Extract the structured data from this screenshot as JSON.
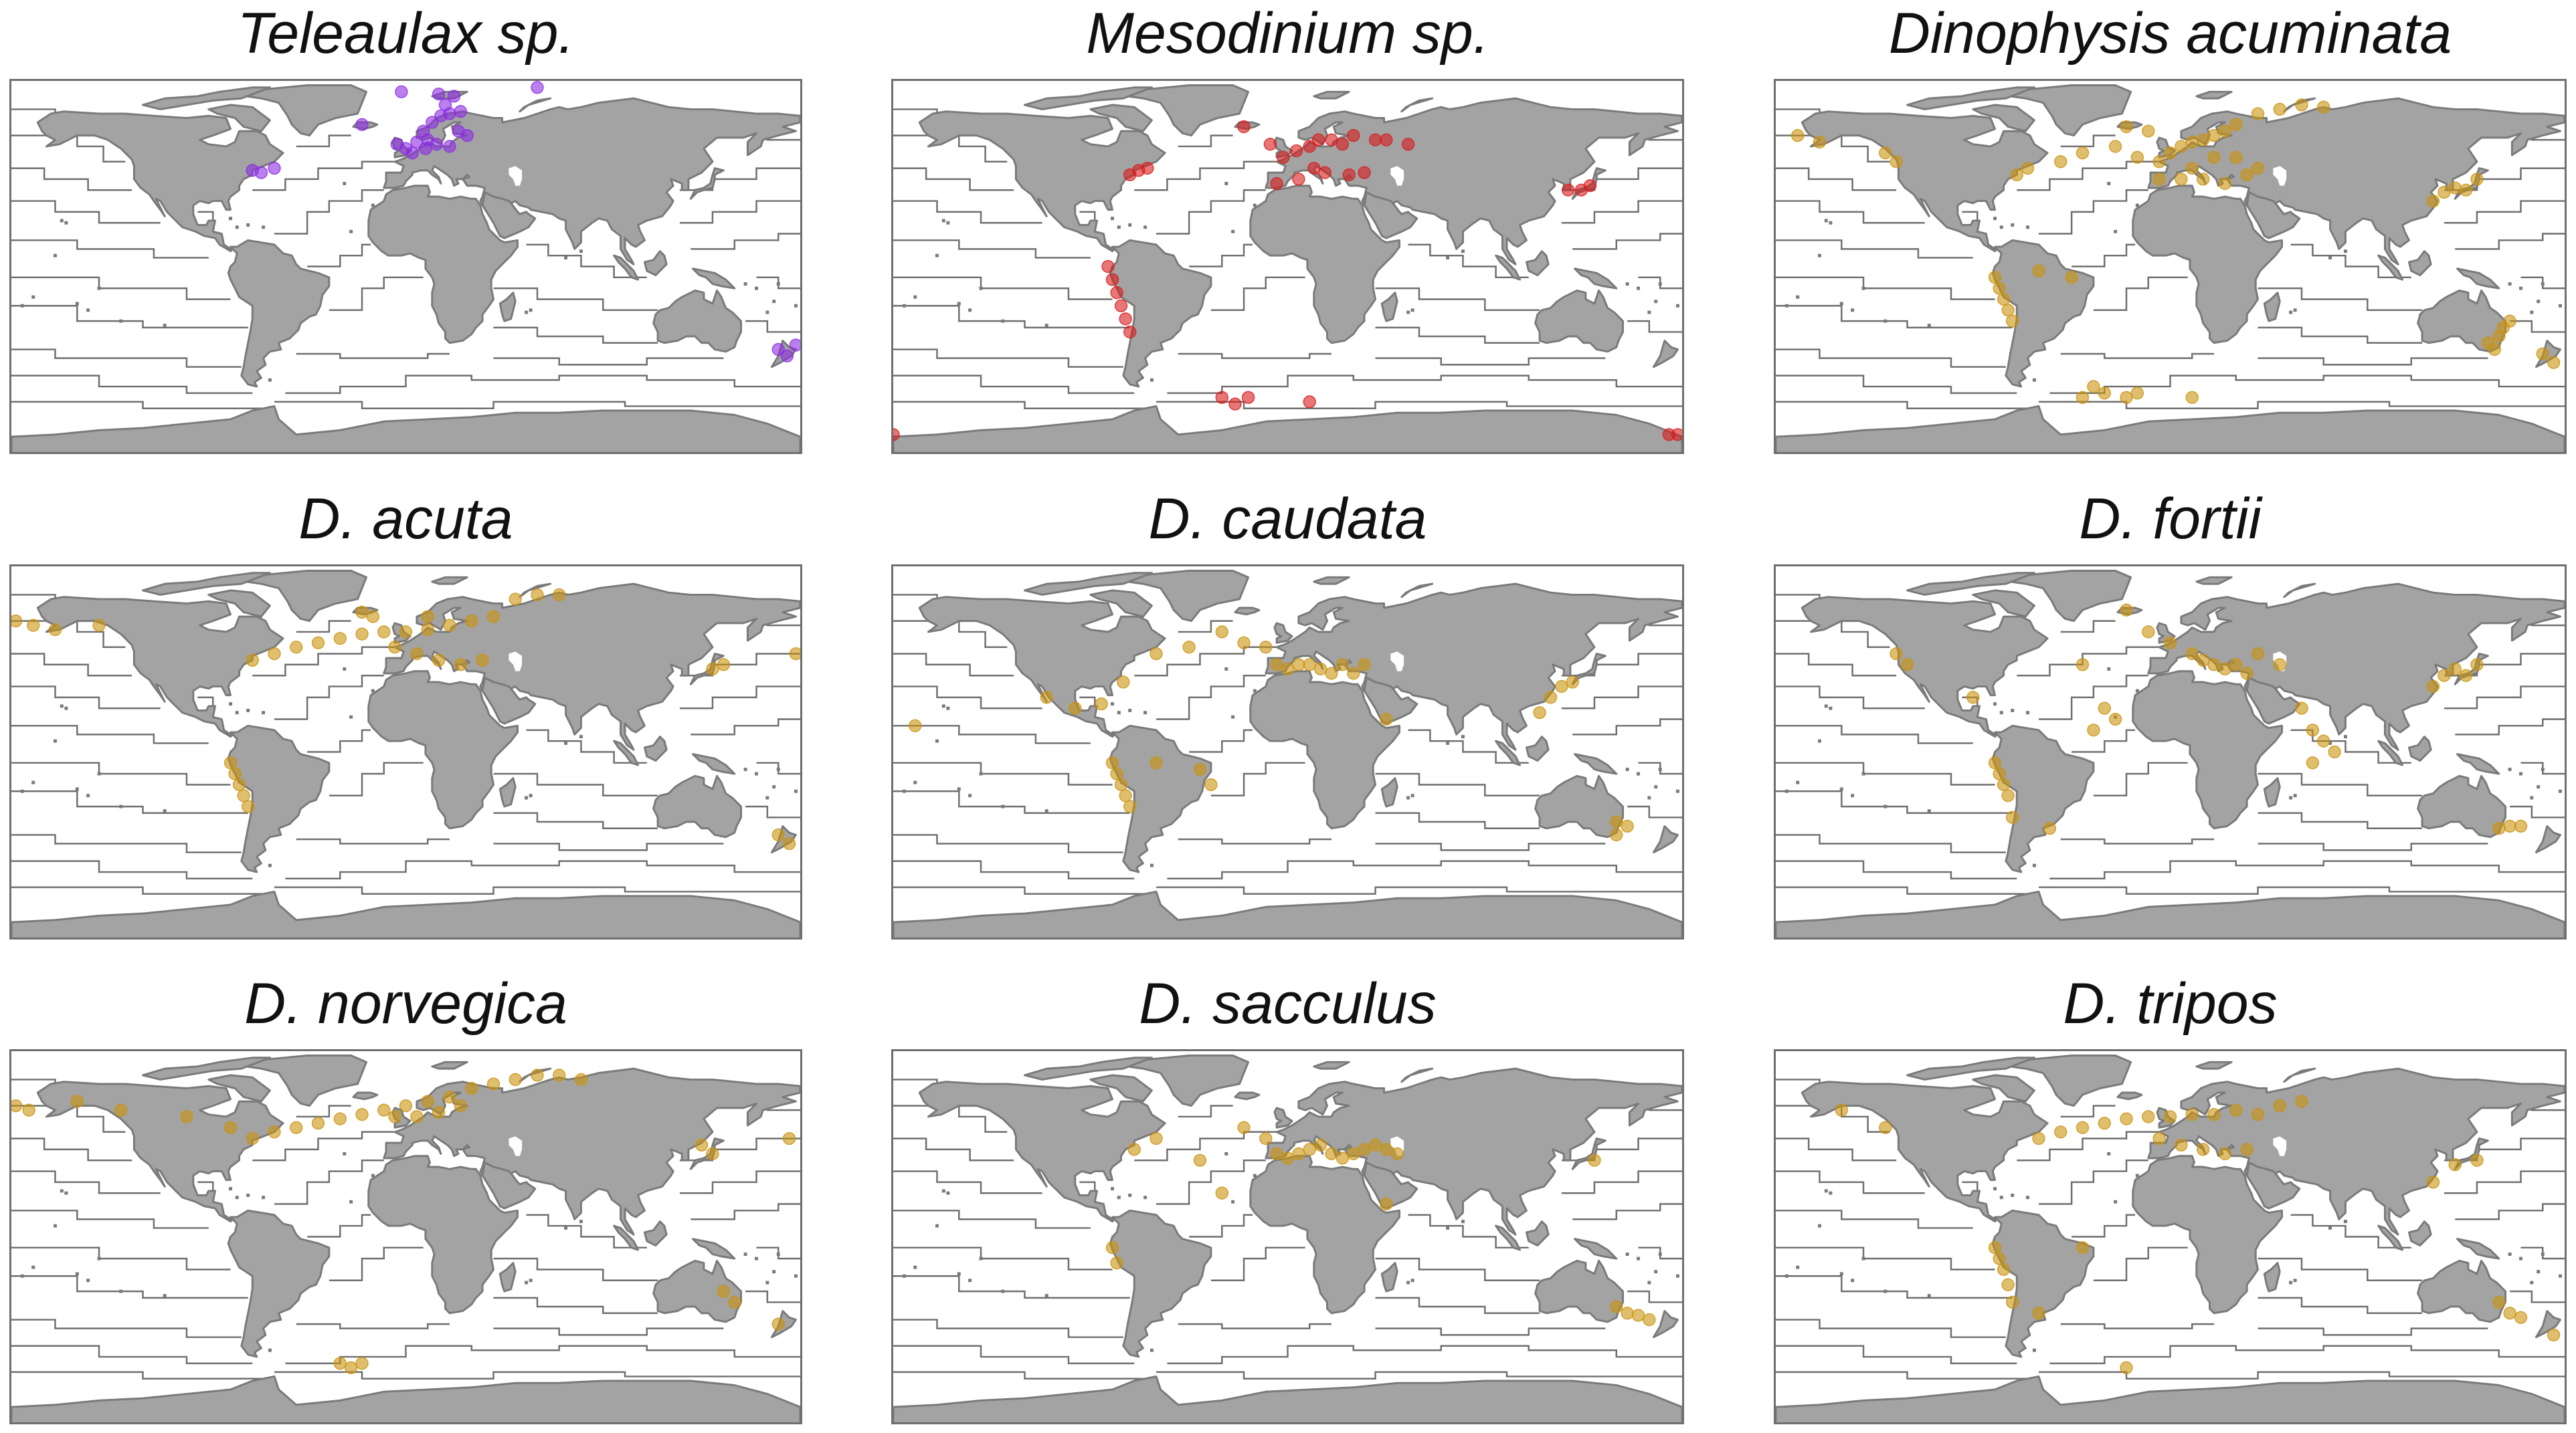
{
  "figure": {
    "colors": {
      "land": "#a3a3a3",
      "coast": "#7a7a7a",
      "province_line": "#6f6f6f",
      "frame": "#6f6f6f",
      "teleaulax": "#8a2be2",
      "mesodinium": "#d81b1b",
      "dinophysis": "#c9920e"
    },
    "panels": [
      {
        "title": "Teleaulax sp.",
        "color_key": "teleaulax",
        "occurrences": [
          [
            -70,
            44
          ],
          [
            -66,
            43
          ],
          [
            -60,
            45
          ],
          [
            -4,
            56
          ],
          [
            0,
            54
          ],
          [
            5,
            57
          ],
          [
            10,
            58
          ],
          [
            14,
            56
          ],
          [
            20,
            55
          ],
          [
            8,
            62
          ],
          [
            12,
            66
          ],
          [
            16,
            69
          ],
          [
            20,
            70
          ],
          [
            18,
            74
          ],
          [
            25,
            71
          ],
          [
            22,
            78
          ],
          [
            15,
            79
          ],
          [
            -2,
            80
          ],
          [
            -20,
            65
          ],
          [
            3,
            52
          ],
          [
            9,
            54
          ],
          [
            28,
            60
          ],
          [
            24,
            62
          ],
          [
            170,
            -38
          ],
          [
            174,
            -41
          ],
          [
            178,
            -36
          ],
          [
            60,
            82
          ]
        ]
      },
      {
        "title": "Mesodinium sp.",
        "color_key": "mesodinium",
        "occurrences": [
          [
            -72,
            42
          ],
          [
            -68,
            44
          ],
          [
            -64,
            45
          ],
          [
            -20,
            64
          ],
          [
            -8,
            56
          ],
          [
            -2,
            50
          ],
          [
            4,
            53
          ],
          [
            10,
            55
          ],
          [
            14,
            58
          ],
          [
            20,
            58
          ],
          [
            25,
            56
          ],
          [
            30,
            60
          ],
          [
            40,
            58
          ],
          [
            45,
            58
          ],
          [
            55,
            56
          ],
          [
            12,
            45
          ],
          [
            17,
            43
          ],
          [
            5,
            40
          ],
          [
            -5,
            38
          ],
          [
            28,
            42
          ],
          [
            35,
            43
          ],
          [
            128,
            35
          ],
          [
            134,
            35
          ],
          [
            138,
            37
          ],
          [
            -80,
            -6
          ],
          [
            -78,
            -12
          ],
          [
            -76,
            -18
          ],
          [
            -74,
            -24
          ],
          [
            -82,
            0
          ],
          [
            -72,
            -30
          ],
          [
            -30,
            -60
          ],
          [
            -24,
            -63
          ],
          [
            -18,
            -60
          ],
          [
            10,
            -62
          ],
          [
            -180,
            -77
          ],
          [
            178,
            -77
          ],
          [
            174,
            -77
          ]
        ]
      },
      {
        "title": "Dinophysis acuminata",
        "color_key": "dinophysis",
        "occurrences": [
          [
            -170,
            60
          ],
          [
            -160,
            57
          ],
          [
            -130,
            52
          ],
          [
            -125,
            48
          ],
          [
            -70,
            42
          ],
          [
            -65,
            45
          ],
          [
            -50,
            48
          ],
          [
            -40,
            52
          ],
          [
            -25,
            55
          ],
          [
            -15,
            50
          ],
          [
            -5,
            48
          ],
          [
            0,
            52
          ],
          [
            5,
            55
          ],
          [
            10,
            57
          ],
          [
            15,
            58
          ],
          [
            20,
            60
          ],
          [
            25,
            62
          ],
          [
            30,
            65
          ],
          [
            40,
            70
          ],
          [
            50,
            72
          ],
          [
            60,
            74
          ],
          [
            70,
            73
          ],
          [
            -5,
            40
          ],
          [
            5,
            40
          ],
          [
            15,
            40
          ],
          [
            25,
            38
          ],
          [
            35,
            42
          ],
          [
            40,
            45
          ],
          [
            10,
            45
          ],
          [
            20,
            50
          ],
          [
            30,
            50
          ],
          [
            -10,
            62
          ],
          [
            -20,
            64
          ],
          [
            120,
            30
          ],
          [
            125,
            34
          ],
          [
            130,
            36
          ],
          [
            135,
            35
          ],
          [
            140,
            40
          ],
          [
            -80,
            -5
          ],
          [
            -78,
            -10
          ],
          [
            -76,
            -15
          ],
          [
            -74,
            -20
          ],
          [
            -72,
            -25
          ],
          [
            -60,
            -2
          ],
          [
            -45,
            -5
          ],
          [
            145,
            -35
          ],
          [
            150,
            -32
          ],
          [
            152,
            -28
          ],
          [
            155,
            -25
          ],
          [
            148,
            -38
          ],
          [
            170,
            -40
          ],
          [
            175,
            -44
          ],
          [
            -40,
            -60
          ],
          [
            -30,
            -58
          ],
          [
            -20,
            -60
          ],
          [
            10,
            -60
          ],
          [
            -35,
            -55
          ],
          [
            -15,
            -58
          ]
        ]
      },
      {
        "title": "D. acuta",
        "color_key": "dinophysis",
        "occurrences": [
          [
            -178,
            60
          ],
          [
            -170,
            58
          ],
          [
            -160,
            56
          ],
          [
            -140,
            58
          ],
          [
            -70,
            42
          ],
          [
            -60,
            45
          ],
          [
            -50,
            48
          ],
          [
            -40,
            50
          ],
          [
            -30,
            52
          ],
          [
            -20,
            54
          ],
          [
            -10,
            55
          ],
          [
            0,
            55
          ],
          [
            10,
            56
          ],
          [
            20,
            58
          ],
          [
            30,
            60
          ],
          [
            40,
            62
          ],
          [
            50,
            70
          ],
          [
            60,
            72
          ],
          [
            70,
            72
          ],
          [
            -20,
            64
          ],
          [
            -5,
            48
          ],
          [
            5,
            45
          ],
          [
            15,
            42
          ],
          [
            25,
            40
          ],
          [
            35,
            42
          ],
          [
            -15,
            62
          ],
          [
            10,
            62
          ],
          [
            140,
            38
          ],
          [
            145,
            40
          ],
          [
            178,
            45
          ],
          [
            -76,
            -15
          ],
          [
            -74,
            -20
          ],
          [
            -72,
            -25
          ],
          [
            -78,
            -10
          ],
          [
            -80,
            -5
          ],
          [
            170,
            -38
          ],
          [
            175,
            -42
          ]
        ]
      },
      {
        "title": "D. caudata",
        "color_key": "dinophysis",
        "occurrences": [
          [
            -170,
            12
          ],
          [
            -110,
            25
          ],
          [
            -97,
            20
          ],
          [
            -85,
            22
          ],
          [
            -75,
            32
          ],
          [
            -60,
            45
          ],
          [
            -45,
            48
          ],
          [
            -30,
            55
          ],
          [
            -20,
            50
          ],
          [
            -10,
            48
          ],
          [
            -5,
            40
          ],
          [
            0,
            38
          ],
          [
            5,
            40
          ],
          [
            10,
            40
          ],
          [
            15,
            38
          ],
          [
            20,
            36
          ],
          [
            25,
            40
          ],
          [
            30,
            36
          ],
          [
            35,
            40
          ],
          [
            -80,
            -5
          ],
          [
            -78,
            -10
          ],
          [
            -76,
            -15
          ],
          [
            -74,
            -20
          ],
          [
            -72,
            -25
          ],
          [
            -60,
            -5
          ],
          [
            -40,
            -8
          ],
          [
            -35,
            -15
          ],
          [
            45,
            15
          ],
          [
            115,
            18
          ],
          [
            120,
            25
          ],
          [
            125,
            30
          ],
          [
            130,
            32
          ],
          [
            150,
            -32
          ],
          [
            155,
            -34
          ],
          [
            150,
            -38
          ]
        ]
      },
      {
        "title": "D. fortii",
        "color_key": "dinophysis",
        "occurrences": [
          [
            -125,
            45
          ],
          [
            -120,
            40
          ],
          [
            -90,
            25
          ],
          [
            -80,
            -5
          ],
          [
            -78,
            -10
          ],
          [
            -76,
            -15
          ],
          [
            -74,
            -20
          ],
          [
            -72,
            -30
          ],
          [
            -55,
            -35
          ],
          [
            -20,
            65
          ],
          [
            -10,
            55
          ],
          [
            0,
            50
          ],
          [
            10,
            45
          ],
          [
            15,
            42
          ],
          [
            20,
            40
          ],
          [
            25,
            38
          ],
          [
            30,
            40
          ],
          [
            35,
            36
          ],
          [
            40,
            45
          ],
          [
            50,
            40
          ],
          [
            -30,
            20
          ],
          [
            -35,
            10
          ],
          [
            -25,
            15
          ],
          [
            -40,
            40
          ],
          [
            60,
            20
          ],
          [
            65,
            10
          ],
          [
            70,
            5
          ],
          [
            75,
            0
          ],
          [
            65,
            -5
          ],
          [
            120,
            30
          ],
          [
            125,
            35
          ],
          [
            130,
            38
          ],
          [
            135,
            35
          ],
          [
            140,
            40
          ],
          [
            150,
            -35
          ],
          [
            155,
            -34
          ],
          [
            160,
            -34
          ]
        ]
      },
      {
        "title": "D. norvegica",
        "color_key": "dinophysis",
        "occurrences": [
          [
            -178,
            60
          ],
          [
            -172,
            58
          ],
          [
            -150,
            62
          ],
          [
            -130,
            58
          ],
          [
            -100,
            55
          ],
          [
            -80,
            50
          ],
          [
            -70,
            45
          ],
          [
            -60,
            48
          ],
          [
            -50,
            50
          ],
          [
            -40,
            52
          ],
          [
            -30,
            54
          ],
          [
            -20,
            56
          ],
          [
            -10,
            58
          ],
          [
            0,
            60
          ],
          [
            10,
            62
          ],
          [
            20,
            64
          ],
          [
            30,
            68
          ],
          [
            40,
            70
          ],
          [
            50,
            72
          ],
          [
            60,
            74
          ],
          [
            70,
            74
          ],
          [
            80,
            72
          ],
          [
            -5,
            55
          ],
          [
            5,
            55
          ],
          [
            15,
            57
          ],
          [
            25,
            60
          ],
          [
            135,
            42
          ],
          [
            140,
            38
          ],
          [
            175,
            45
          ],
          [
            145,
            -25
          ],
          [
            150,
            -30
          ],
          [
            170,
            -40
          ],
          [
            -30,
            -58
          ],
          [
            -25,
            -60
          ],
          [
            -20,
            -58
          ]
        ]
      },
      {
        "title": "D. sacculus",
        "color_key": "dinophysis",
        "occurrences": [
          [
            -70,
            40
          ],
          [
            -60,
            45
          ],
          [
            -40,
            35
          ],
          [
            -20,
            50
          ],
          [
            -10,
            45
          ],
          [
            -5,
            38
          ],
          [
            0,
            36
          ],
          [
            5,
            38
          ],
          [
            10,
            40
          ],
          [
            15,
            42
          ],
          [
            20,
            38
          ],
          [
            25,
            36
          ],
          [
            30,
            38
          ],
          [
            35,
            40
          ],
          [
            40,
            42
          ],
          [
            45,
            40
          ],
          [
            50,
            38
          ],
          [
            45,
            15
          ],
          [
            -30,
            20
          ],
          [
            -80,
            -5
          ],
          [
            -78,
            -12
          ],
          [
            140,
            35
          ],
          [
            150,
            -32
          ],
          [
            155,
            -35
          ],
          [
            160,
            -36
          ],
          [
            165,
            -38
          ]
        ]
      },
      {
        "title": "D. tripos",
        "color_key": "dinophysis",
        "occurrences": [
          [
            -150,
            58
          ],
          [
            -130,
            50
          ],
          [
            -60,
            45
          ],
          [
            -50,
            48
          ],
          [
            -40,
            50
          ],
          [
            -30,
            52
          ],
          [
            -20,
            54
          ],
          [
            -10,
            55
          ],
          [
            0,
            55
          ],
          [
            10,
            56
          ],
          [
            20,
            56
          ],
          [
            30,
            58
          ],
          [
            40,
            56
          ],
          [
            50,
            60
          ],
          [
            60,
            62
          ],
          [
            -5,
            45
          ],
          [
            5,
            42
          ],
          [
            15,
            40
          ],
          [
            25,
            38
          ],
          [
            35,
            40
          ],
          [
            120,
            25
          ],
          [
            130,
            33
          ],
          [
            140,
            35
          ],
          [
            -80,
            -5
          ],
          [
            -78,
            -10
          ],
          [
            -76,
            -15
          ],
          [
            -74,
            -22
          ],
          [
            -72,
            -30
          ],
          [
            -60,
            -35
          ],
          [
            -40,
            -5
          ],
          [
            150,
            -30
          ],
          [
            155,
            -35
          ],
          [
            160,
            -37
          ],
          [
            175,
            -45
          ],
          [
            -20,
            -60
          ]
        ]
      }
    ]
  }
}
